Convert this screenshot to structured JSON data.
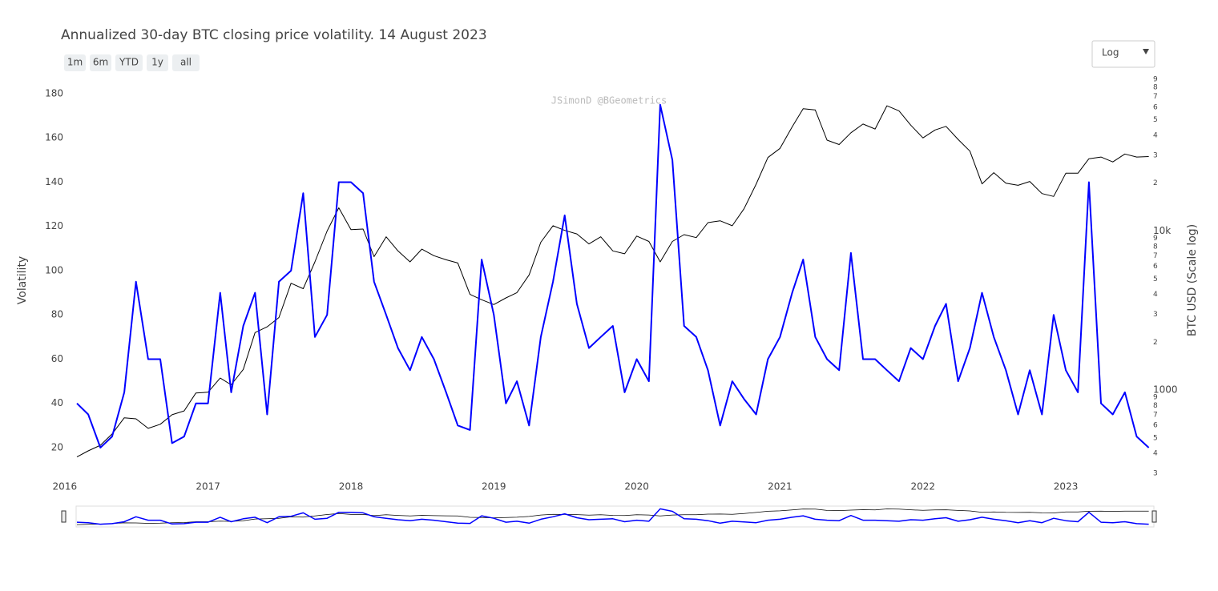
{
  "chart_data": {
    "type": "line",
    "title": "Annualized 30-day BTC closing price volatility. 14 August 2023",
    "watermark": "JSimonD @BGeometrics",
    "range_buttons": [
      "1m",
      "6m",
      "YTD",
      "1y",
      "all"
    ],
    "scale_menu": "Log",
    "y_label": "Volatility",
    "y2_label": "BTC USD (Scale log)",
    "grid": false,
    "y2scale": "log",
    "x": [
      "2016-02",
      "2016-03",
      "2016-04",
      "2016-05",
      "2016-06",
      "2016-07",
      "2016-08",
      "2016-09",
      "2016-10",
      "2016-11",
      "2016-12",
      "2017-01",
      "2017-02",
      "2017-03",
      "2017-04",
      "2017-05",
      "2017-06",
      "2017-07",
      "2017-08",
      "2017-09",
      "2017-10",
      "2017-11",
      "2017-12",
      "2018-01",
      "2018-02",
      "2018-03",
      "2018-04",
      "2018-05",
      "2018-06",
      "2018-07",
      "2018-08",
      "2018-09",
      "2018-10",
      "2018-11",
      "2018-12",
      "2019-01",
      "2019-02",
      "2019-03",
      "2019-04",
      "2019-05",
      "2019-06",
      "2019-07",
      "2019-08",
      "2019-09",
      "2019-10",
      "2019-11",
      "2019-12",
      "2020-01",
      "2020-02",
      "2020-03",
      "2020-04",
      "2020-05",
      "2020-06",
      "2020-07",
      "2020-08",
      "2020-09",
      "2020-10",
      "2020-11",
      "2020-12",
      "2021-01",
      "2021-02",
      "2021-03",
      "2021-04",
      "2021-05",
      "2021-06",
      "2021-07",
      "2021-08",
      "2021-09",
      "2021-10",
      "2021-11",
      "2021-12",
      "2022-01",
      "2022-02",
      "2022-03",
      "2022-04",
      "2022-05",
      "2022-06",
      "2022-07",
      "2022-08",
      "2022-09",
      "2022-10",
      "2022-11",
      "2022-12",
      "2023-01",
      "2023-02",
      "2023-03",
      "2023-04",
      "2023-05",
      "2023-06",
      "2023-07",
      "2023-08"
    ],
    "series": [
      {
        "color": "#0000ff",
        "values": [
          40,
          35,
          20,
          25,
          45,
          95,
          60,
          60,
          22,
          25,
          40,
          40,
          90,
          45,
          75,
          90,
          35,
          95,
          100,
          135,
          70,
          80,
          140,
          140,
          135,
          95,
          80,
          65,
          55,
          70,
          60,
          45,
          30,
          28,
          105,
          80,
          40,
          50,
          30,
          70,
          95,
          125,
          85,
          65,
          70,
          75,
          45,
          60,
          50,
          175,
          150,
          75,
          70,
          55,
          30,
          50,
          42,
          35,
          60,
          70,
          90,
          105,
          70,
          60,
          55,
          108,
          60,
          60,
          55,
          50,
          65,
          60,
          75,
          85,
          50,
          65,
          90,
          70,
          55,
          35,
          55,
          35,
          80,
          55,
          45,
          140,
          40,
          35,
          45,
          25,
          20
        ]
      },
      {
        "color": "#000000",
        "axis": "y2",
        "values": [
          380,
          415,
          450,
          530,
          670,
          660,
          575,
          610,
          700,
          740,
          960,
          970,
          1190,
          1080,
          1350,
          2300,
          2500,
          2860,
          4700,
          4340,
          6400,
          10000,
          14000,
          10200,
          10300,
          6900,
          9200,
          7500,
          6400,
          7700,
          7000,
          6600,
          6300,
          4000,
          3700,
          3450,
          3800,
          4100,
          5300,
          8500,
          10800,
          10100,
          9600,
          8300,
          9200,
          7500,
          7200,
          9300,
          8600,
          6400,
          8600,
          9500,
          9100,
          11300,
          11600,
          10800,
          13800,
          19700,
          29000,
          33100,
          45200,
          58800,
          57700,
          37300,
          35000,
          41500,
          47100,
          43800,
          61300,
          57000,
          46300,
          38500,
          43200,
          45500,
          37700,
          31800,
          19800,
          23300,
          20000,
          19400,
          20500,
          17200,
          16500,
          23100,
          23100,
          28500,
          29200,
          27200,
          30500,
          29200,
          29400
        ]
      }
    ],
    "xlim": [
      "2016-01-30",
      "2023-08-14"
    ],
    "xticks": [
      "2016",
      "2017",
      "2018",
      "2019",
      "2020",
      "2021",
      "2022",
      "2023"
    ],
    "ylim": [
      8.4,
      186.5
    ],
    "yticks": [
      20,
      40,
      60,
      80,
      100,
      120,
      140,
      160,
      180
    ],
    "y2lim": [
      300,
      90000
    ],
    "y2ticks": [
      {
        "value": 300,
        "label": "3"
      },
      {
        "value": 400,
        "label": "4"
      },
      {
        "value": 500,
        "label": "5"
      },
      {
        "value": 600,
        "label": "6"
      },
      {
        "value": 700,
        "label": "7"
      },
      {
        "value": 800,
        "label": "8"
      },
      {
        "value": 900,
        "label": "9"
      },
      1000,
      {
        "value": 2000,
        "label": "2"
      },
      {
        "value": 3000,
        "label": "3"
      },
      {
        "value": 4000,
        "label": "4"
      },
      {
        "value": 5000,
        "label": "5"
      },
      {
        "value": 6000,
        "label": "6"
      },
      {
        "value": 7000,
        "label": "7"
      },
      {
        "value": 8000,
        "label": "8"
      },
      {
        "value": 9000,
        "label": "9"
      },
      {
        "value": 10000,
        "label": "10k"
      },
      {
        "value": 20000,
        "label": "2"
      },
      {
        "value": 30000,
        "label": "3"
      },
      {
        "value": 40000,
        "label": "4"
      },
      {
        "value": 50000,
        "label": "5"
      },
      {
        "value": 60000,
        "label": "6"
      },
      {
        "value": 70000,
        "label": "7"
      },
      {
        "value": 80000,
        "label": "8"
      },
      {
        "value": 90000,
        "label": "9"
      }
    ]
  }
}
